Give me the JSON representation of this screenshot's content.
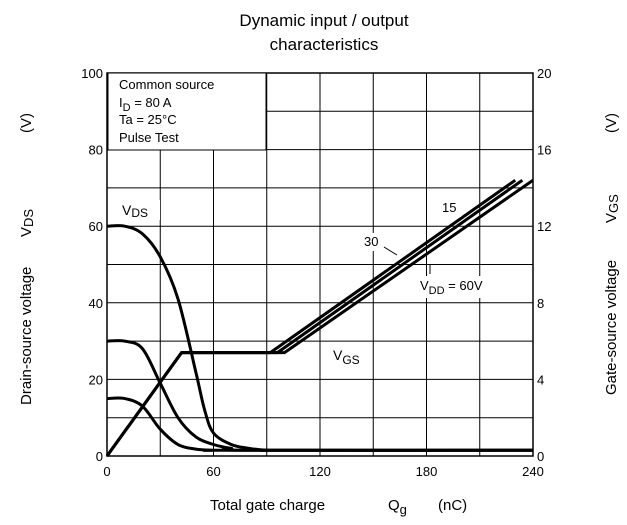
{
  "chart_data": {
    "type": "line",
    "title": [
      "Dynamic input / output",
      "characteristics"
    ],
    "xlabel": {
      "text": "Total gate charge",
      "symbol": "Q",
      "subscript": "g",
      "unit": "(nC)"
    },
    "ylabel_left": {
      "text": "Drain-source voltage",
      "symbol": "V",
      "subscript": "DS",
      "unit": "(V)"
    },
    "ylabel_right": {
      "text": "Gate-source voltage",
      "symbol": "V",
      "subscript": "GS",
      "unit": "(V)"
    },
    "xlim": [
      0,
      240
    ],
    "ylim_left": [
      0,
      100
    ],
    "ylim_right": [
      0,
      20
    ],
    "x_ticks": [
      "0",
      "60",
      "120",
      "180",
      "240"
    ],
    "y_left_ticks": [
      "0",
      "20",
      "40",
      "60",
      "80",
      "100"
    ],
    "y_right_ticks": [
      "0",
      "4",
      "8",
      "12",
      "16",
      "20"
    ],
    "grid": true,
    "conditions": [
      {
        "text": "Common source"
      },
      {
        "text": "I",
        "sub": "D",
        "rest": " = 80 A"
      },
      {
        "text": "Ta = 25°C"
      },
      {
        "text": "Pulse Test"
      }
    ],
    "curve_labels": {
      "vds": {
        "main": "V",
        "sub": "DS"
      },
      "vgs": {
        "main": "V",
        "sub": "GS"
      },
      "vdd60": {
        "main": "V",
        "sub": "DD",
        "rest": " = 60V"
      },
      "vdd30": "30",
      "vdd15": "15"
    },
    "series": [
      {
        "name": "VDS (VDD = 60V)",
        "axis": "left",
        "x": [
          0,
          10,
          20,
          30,
          40,
          50,
          55,
          60,
          70,
          80,
          90,
          100,
          240
        ],
        "y": [
          60,
          60,
          58,
          52,
          41,
          22,
          12,
          6,
          3,
          2,
          1.5,
          1.5,
          1.5
        ]
      },
      {
        "name": "VDS (VDD = 30V)",
        "axis": "left",
        "x": [
          0,
          10,
          20,
          30,
          40,
          50,
          60,
          70,
          80,
          240
        ],
        "y": [
          30,
          30,
          28,
          19,
          10,
          5,
          3,
          2,
          1.5,
          1.5
        ]
      },
      {
        "name": "VDS (VDD = 15V)",
        "axis": "left",
        "x": [
          0,
          10,
          20,
          30,
          40,
          50,
          60,
          70,
          240
        ],
        "y": [
          15,
          15,
          13,
          7,
          3,
          1.8,
          1.5,
          1.5,
          1.5
        ]
      },
      {
        "name": "VGS (VDD = 60V)",
        "axis": "right",
        "x": [
          0,
          42,
          100,
          240
        ],
        "y": [
          0,
          5.4,
          5.4,
          14.4
        ]
      },
      {
        "name": "VGS (VDD = 30V)",
        "axis": "right",
        "x": [
          0,
          42,
          96,
          234
        ],
        "y": [
          0,
          5.4,
          5.4,
          14.4
        ]
      },
      {
        "name": "VGS (VDD = 15V)",
        "axis": "right",
        "x": [
          0,
          42,
          92,
          230
        ],
        "y": [
          0,
          5.4,
          5.4,
          14.4
        ]
      }
    ]
  }
}
